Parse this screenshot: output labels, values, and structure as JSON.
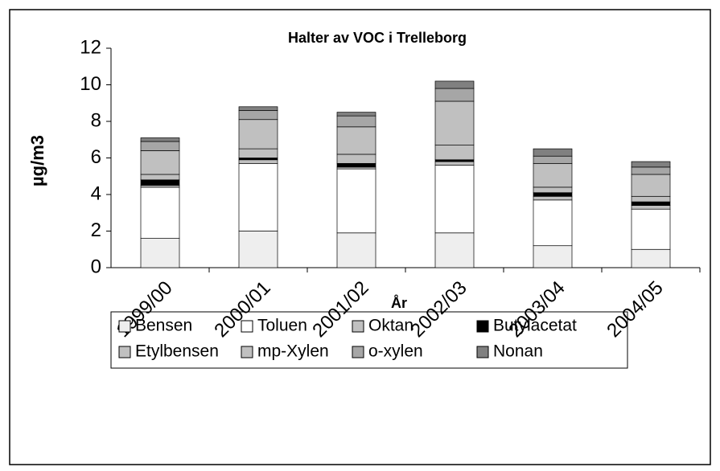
{
  "chart_data": {
    "type": "stacked_bar",
    "title": "Halter av VOC i Trelleborg",
    "y_label": "µg/m3",
    "x_label": "År",
    "categories": [
      "1999/00",
      "2000/01",
      "2001/02",
      "2002/03",
      "2003/04",
      "2004/05"
    ],
    "series": [
      {
        "name": "Bensen",
        "color": "#eeeeee",
        "values": [
          1.6,
          2.0,
          1.9,
          1.9,
          1.2,
          1.0
        ]
      },
      {
        "name": "Toluen",
        "color": "#ffffff",
        "values": [
          2.8,
          3.7,
          3.5,
          3.7,
          2.5,
          2.2
        ]
      },
      {
        "name": "Oktan",
        "color": "#c0c0c0",
        "values": [
          0.1,
          0.2,
          0.1,
          0.2,
          0.2,
          0.2
        ]
      },
      {
        "name": "Butylacetat",
        "color": "#000000",
        "values": [
          0.3,
          0.1,
          0.2,
          0.1,
          0.2,
          0.2
        ]
      },
      {
        "name": "Etylbensen",
        "color": "#c0c0c0",
        "values": [
          0.3,
          0.5,
          0.5,
          0.8,
          0.3,
          0.3
        ]
      },
      {
        "name": "mp-Xylen",
        "color": "#c0c0c0",
        "values": [
          1.3,
          1.6,
          1.5,
          2.4,
          1.3,
          1.2
        ]
      },
      {
        "name": "o-xylen",
        "color": "#a6a6a6",
        "values": [
          0.5,
          0.5,
          0.6,
          0.7,
          0.4,
          0.4
        ]
      },
      {
        "name": "Nonan",
        "color": "#808080",
        "values": [
          0.2,
          0.2,
          0.2,
          0.4,
          0.4,
          0.3
        ]
      }
    ],
    "ylim": [
      0,
      12
    ],
    "yticks": [
      0,
      2,
      4,
      6,
      8,
      10,
      12
    ]
  }
}
